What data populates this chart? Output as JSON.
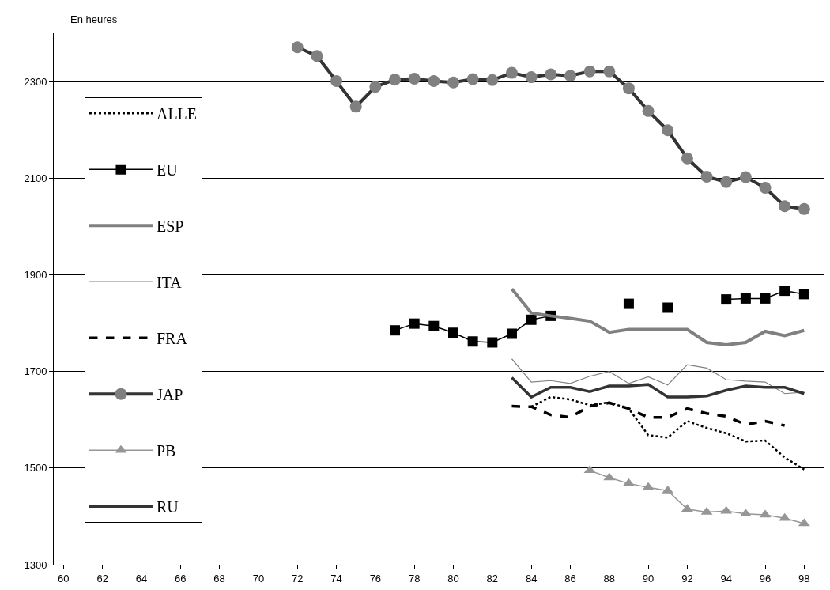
{
  "chart_data": {
    "type": "line",
    "ylabel": "En heures",
    "xlim": [
      59.5,
      99
    ],
    "xticks": [
      60,
      62,
      64,
      66,
      68,
      70,
      72,
      74,
      76,
      78,
      80,
      82,
      84,
      86,
      88,
      90,
      92,
      94,
      96,
      98
    ],
    "ylim": [
      1300,
      2400
    ],
    "yticks": [
      1300,
      1500,
      1700,
      1900,
      2100,
      2300
    ],
    "grid": "y",
    "legend": "left",
    "series": [
      {
        "name": "ALLE",
        "color": "#000000",
        "line_style": "dotted",
        "marker": "none",
        "x": [
          84,
          85,
          86,
          87,
          88,
          89,
          90,
          91,
          92,
          93,
          94,
          95,
          96,
          97,
          98
        ],
        "values": [
          1627,
          1647,
          1642,
          1630,
          1636,
          1623,
          1568,
          1563,
          1597,
          1583,
          1572,
          1555,
          1557,
          1522,
          1497
        ]
      },
      {
        "name": "EU",
        "color": "#000000",
        "line_style": "solid",
        "marker": "square",
        "x": [
          77,
          78,
          79,
          80,
          81,
          82,
          83,
          84,
          85,
          86,
          87,
          88,
          89,
          90,
          91,
          92,
          93,
          94,
          95,
          96,
          97,
          98
        ],
        "values": [
          1785,
          1799,
          1794,
          1780,
          1762,
          1760,
          1778,
          1807,
          1815,
          null,
          null,
          null,
          1840,
          null,
          1832,
          null,
          null,
          1849,
          1851,
          1851,
          1867,
          1860
        ]
      },
      {
        "name": "ESP",
        "color": "#808080",
        "line_style": "solid",
        "marker": "none",
        "x": [
          83,
          84,
          85,
          86,
          87,
          88,
          89,
          90,
          91,
          92,
          93,
          94,
          95,
          96,
          97,
          98
        ],
        "values": [
          1871,
          1821,
          1815,
          1810,
          1804,
          1781,
          1787,
          1787,
          1787,
          1787,
          1760,
          1755,
          1760,
          1783,
          1774,
          1785
        ]
      },
      {
        "name": "ITA",
        "color": "#808080",
        "line_style": "solid",
        "marker": "none",
        "x": [
          83,
          84,
          85,
          86,
          87,
          88,
          89,
          90,
          91,
          92,
          93,
          94,
          95,
          96,
          97,
          98
        ],
        "values": [
          1726,
          1678,
          1681,
          1675,
          1690,
          1700,
          1675,
          1689,
          1672,
          1714,
          1707,
          1683,
          1680,
          1678,
          1654,
          1657
        ]
      },
      {
        "name": "FRA",
        "color": "#000000",
        "line_style": "dashed",
        "marker": "none",
        "x": [
          83,
          84,
          85,
          86,
          87,
          88,
          89,
          90,
          91,
          92,
          93,
          94,
          95,
          96,
          97
        ],
        "values": [
          1628,
          1627,
          1610,
          1605,
          1628,
          1635,
          1623,
          1605,
          1605,
          1623,
          1613,
          1607,
          1590,
          1597,
          1588
        ]
      },
      {
        "name": "JAP",
        "color": "#333333",
        "line_style": "solid",
        "marker": "circle",
        "x": [
          72,
          73,
          74,
          75,
          76,
          77,
          78,
          79,
          80,
          81,
          82,
          83,
          84,
          85,
          86,
          87,
          88,
          89,
          90,
          91,
          92,
          93,
          94,
          95,
          96,
          97,
          98
        ],
        "values": [
          2371,
          2353,
          2301,
          2248,
          2289,
          2304,
          2306,
          2301,
          2298,
          2305,
          2303,
          2318,
          2309,
          2315,
          2312,
          2321,
          2321,
          2286,
          2239,
          2199,
          2141,
          2103,
          2092,
          2102,
          2080,
          2042,
          2036
        ]
      },
      {
        "name": "PB",
        "color": "#969696",
        "line_style": "solid",
        "marker": "triangle",
        "x": [
          87,
          88,
          89,
          90,
          91,
          92,
          93,
          94,
          95,
          96,
          97,
          98
        ],
        "values": [
          1495,
          1480,
          1468,
          1460,
          1453,
          1415,
          1409,
          1411,
          1405,
          1403,
          1396,
          1385
        ]
      },
      {
        "name": "RU",
        "color": "#333333",
        "line_style": "solid",
        "marker": "none",
        "x": [
          83,
          84,
          85,
          86,
          87,
          88,
          89,
          90,
          91,
          92,
          93,
          94,
          95,
          96,
          97,
          98
        ],
        "values": [
          1687,
          1647,
          1667,
          1667,
          1658,
          1670,
          1670,
          1673,
          1647,
          1647,
          1649,
          1661,
          1670,
          1667,
          1667,
          1654
        ]
      }
    ]
  }
}
